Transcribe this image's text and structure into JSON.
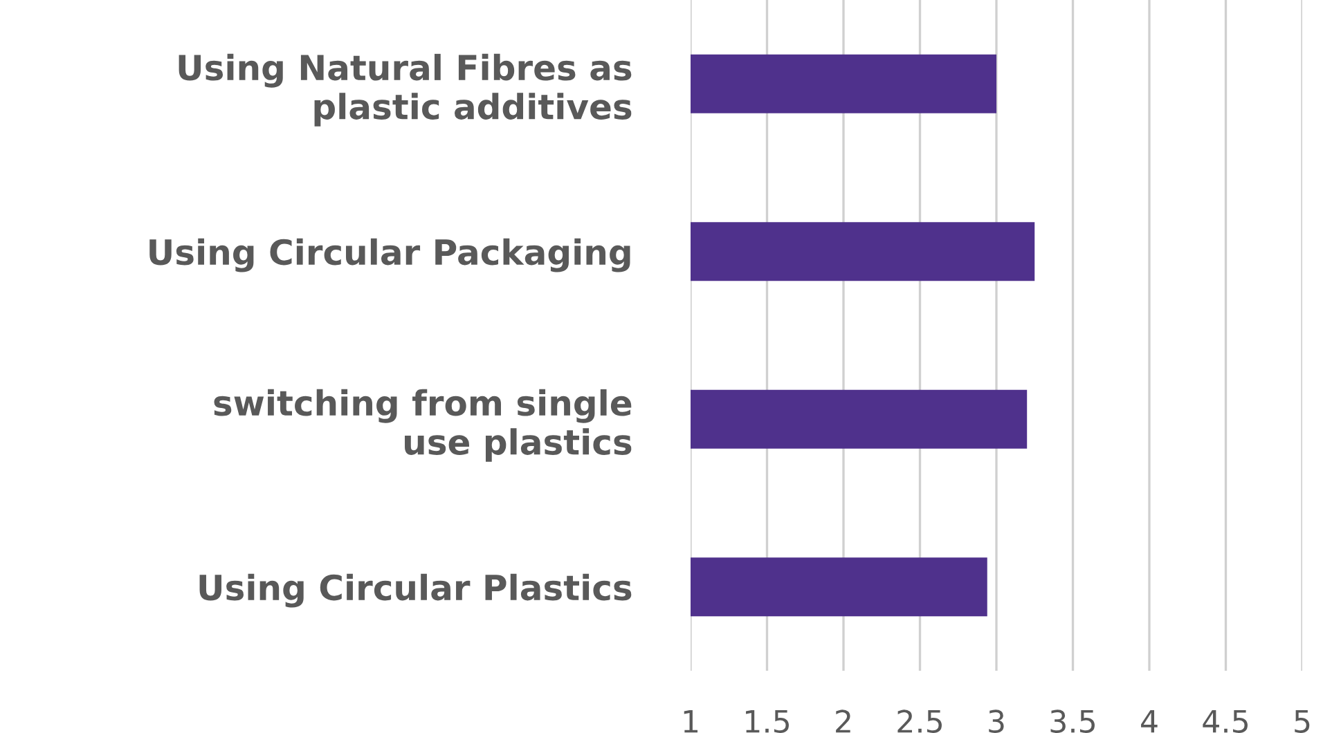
{
  "chart_data": {
    "type": "bar",
    "orientation": "horizontal",
    "categories": [
      "Using Natural Fibres as\nplastic additives",
      "Using Circular Packaging",
      "switching from single\nuse plastics",
      "Using Circular Plastics"
    ],
    "values": [
      3.0,
      3.25,
      3.2,
      2.94
    ],
    "color": "#4f318c",
    "xlim": [
      1,
      5
    ],
    "xticks": [
      1,
      1.5,
      2,
      2.5,
      3,
      3.5,
      4,
      4.5,
      5
    ],
    "grid": "x",
    "legend": false
  }
}
